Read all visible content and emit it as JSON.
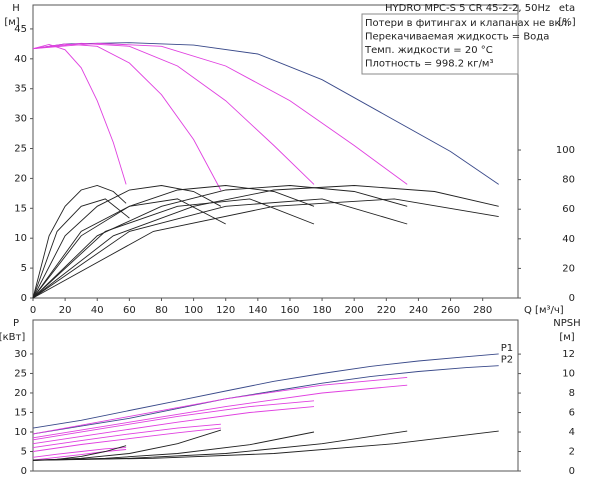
{
  "chart_data": [
    {
      "type": "line",
      "title": "HYDRO MPC-S 5 CR 45-2-2, 50Hz",
      "notes": [
        "Потери в фитингах и клапанах не вкл.",
        "Перекачиваемая жидкость = Вода",
        "Темп. жидкости = 20 °C",
        "Плотность = 998.2 кг/м³"
      ],
      "ylabel": [
        "H",
        "[м]"
      ],
      "y2label": [
        "eta",
        "[%]"
      ],
      "xlabel": "Q [м³/ч]",
      "xlim": [
        0,
        302
      ],
      "xticks": [
        0,
        20,
        40,
        60,
        80,
        100,
        120,
        140,
        160,
        180,
        200,
        220,
        240,
        260,
        280
      ],
      "ylim": [
        0,
        49
      ],
      "yticks": [
        0,
        5,
        10,
        15,
        20,
        25,
        30,
        35,
        40,
        45
      ],
      "y2lim": [
        0,
        198
      ],
      "y2ticks": [
        0,
        20,
        40,
        60,
        80,
        100
      ],
      "series": [
        {
          "color": "#3a4a8a",
          "x": [
            0,
            20,
            60,
            100,
            140,
            180,
            220,
            260,
            290
          ],
          "values": [
            41.7,
            42.5,
            42.7,
            42.3,
            40.8,
            36.5,
            30.5,
            24.5,
            19
          ]
        },
        {
          "color": "#e040e0",
          "x": [
            0,
            10,
            20,
            30,
            40,
            50,
            58
          ],
          "values": [
            41.7,
            42.4,
            41.5,
            38.5,
            33,
            26,
            19
          ]
        },
        {
          "color": "#e040e0",
          "x": [
            0,
            20,
            40,
            60,
            80,
            100,
            117
          ],
          "values": [
            41.7,
            42.5,
            42.1,
            39.3,
            34,
            26.5,
            18
          ]
        },
        {
          "color": "#e040e0",
          "x": [
            0,
            30,
            60,
            90,
            120,
            150,
            175
          ],
          "values": [
            41.7,
            42.6,
            42.1,
            38.8,
            33,
            25.5,
            19
          ]
        },
        {
          "color": "#e040e0",
          "x": [
            0,
            40,
            80,
            120,
            160,
            200,
            233
          ],
          "values": [
            41.7,
            42.6,
            42.1,
            38.8,
            33,
            25.5,
            19
          ]
        },
        {
          "color": "#222222",
          "axis": "y2",
          "x": [
            0,
            10,
            20,
            30,
            40,
            50,
            58
          ],
          "values": [
            0,
            42,
            62,
            73,
            76,
            72,
            64
          ]
        },
        {
          "color": "#222222",
          "axis": "y2",
          "x": [
            0,
            20,
            40,
            60,
            80,
            100,
            117
          ],
          "values": [
            0,
            42,
            62,
            73,
            76,
            72,
            62
          ]
        },
        {
          "color": "#222222",
          "axis": "y2",
          "x": [
            0,
            30,
            60,
            90,
            120,
            150,
            175
          ],
          "values": [
            0,
            42,
            62,
            73,
            76,
            72,
            62
          ]
        },
        {
          "color": "#222222",
          "axis": "y2",
          "x": [
            0,
            40,
            80,
            120,
            160,
            200,
            233
          ],
          "values": [
            0,
            42,
            62,
            73,
            76,
            72,
            62
          ]
        },
        {
          "color": "#222222",
          "axis": "y2",
          "x": [
            0,
            50,
            100,
            150,
            200,
            250,
            290
          ],
          "values": [
            0,
            42,
            62,
            73,
            76,
            72,
            62
          ]
        },
        {
          "color": "#222222",
          "axis": "y2",
          "x": [
            0,
            15,
            30,
            45,
            60
          ],
          "values": [
            0,
            45,
            62,
            67,
            54
          ]
        },
        {
          "color": "#222222",
          "axis": "y2",
          "x": [
            0,
            30,
            60,
            90,
            120
          ],
          "values": [
            0,
            45,
            62,
            67,
            50
          ]
        },
        {
          "color": "#222222",
          "axis": "y2",
          "x": [
            0,
            45,
            90,
            135,
            175
          ],
          "values": [
            0,
            45,
            62,
            67,
            50
          ]
        },
        {
          "color": "#222222",
          "axis": "y2",
          "x": [
            0,
            60,
            120,
            180,
            233
          ],
          "values": [
            0,
            45,
            62,
            67,
            50
          ]
        },
        {
          "color": "#222222",
          "axis": "y2",
          "x": [
            0,
            75,
            150,
            225,
            290
          ],
          "values": [
            0,
            45,
            62,
            67,
            55
          ]
        }
      ]
    },
    {
      "type": "line",
      "ylabel": [
        "P",
        "[кВт]"
      ],
      "y2label": [
        "NPSH",
        "[м]"
      ],
      "xlim": [
        0,
        302
      ],
      "ylim": [
        0,
        38.7
      ],
      "yticks": [
        0,
        5,
        10,
        15,
        20,
        25,
        30
      ],
      "y2lim": [
        0,
        15.5
      ],
      "y2ticks": [
        0,
        2,
        4,
        6,
        8,
        10,
        12
      ],
      "series": [
        {
          "name": "P1",
          "color": "#3a4a8a",
          "x": [
            0,
            30,
            60,
            90,
            120,
            150,
            180,
            210,
            240,
            270,
            290
          ],
          "values": [
            11,
            13,
            15.5,
            18,
            20.5,
            23,
            25,
            26.8,
            28.2,
            29.3,
            30
          ]
        },
        {
          "name": "P2",
          "color": "#3a4a8a",
          "x": [
            0,
            30,
            60,
            90,
            120,
            150,
            180,
            210,
            240,
            270,
            290
          ],
          "values": [
            9.5,
            11.5,
            13.5,
            16,
            18.5,
            20.5,
            22.5,
            24.2,
            25.5,
            26.5,
            27
          ]
        },
        {
          "color": "#e040e0",
          "x": [
            0,
            60,
            120,
            180,
            233
          ],
          "values": [
            9.5,
            14,
            18.5,
            22,
            24
          ]
        },
        {
          "color": "#e040e0",
          "x": [
            0,
            60,
            120,
            180,
            233
          ],
          "values": [
            8.5,
            12.5,
            16.5,
            20,
            22
          ]
        },
        {
          "color": "#e040e0",
          "x": [
            0,
            45,
            90,
            135,
            175
          ],
          "values": [
            8,
            11,
            14,
            16.5,
            18
          ]
        },
        {
          "color": "#e040e0",
          "x": [
            0,
            45,
            90,
            135,
            175
          ],
          "values": [
            7,
            9.8,
            12.5,
            15,
            16.5
          ]
        },
        {
          "color": "#e040e0",
          "x": [
            0,
            30,
            60,
            90,
            117
          ],
          "values": [
            6,
            7.8,
            9.5,
            11,
            12
          ]
        },
        {
          "color": "#e040e0",
          "x": [
            0,
            30,
            60,
            90,
            117
          ],
          "values": [
            5,
            6.8,
            8.3,
            9.8,
            11
          ]
        },
        {
          "color": "#e040e0",
          "x": [
            0,
            15,
            30,
            45,
            58
          ],
          "values": [
            3.5,
            4.3,
            5,
            5.7,
            6
          ]
        },
        {
          "color": "#e040e0",
          "x": [
            0,
            15,
            30,
            45,
            58
          ],
          "values": [
            2.8,
            3.5,
            4.2,
            5,
            5.5
          ]
        },
        {
          "color": "#222222",
          "axis": "y2",
          "x": [
            0,
            15,
            30,
            45,
            58
          ],
          "values": [
            1.1,
            1.2,
            1.5,
            2,
            2.6
          ]
        },
        {
          "color": "#222222",
          "axis": "y2",
          "x": [
            0,
            30,
            60,
            90,
            117
          ],
          "values": [
            1.1,
            1.3,
            1.8,
            2.8,
            4.2
          ]
        },
        {
          "color": "#222222",
          "axis": "y2",
          "x": [
            0,
            45,
            90,
            135,
            175
          ],
          "values": [
            1.1,
            1.3,
            1.8,
            2.7,
            4
          ]
        },
        {
          "color": "#222222",
          "axis": "y2",
          "x": [
            0,
            60,
            120,
            180,
            233
          ],
          "values": [
            1.1,
            1.3,
            1.8,
            2.8,
            4.1
          ]
        },
        {
          "color": "#222222",
          "axis": "y2",
          "x": [
            0,
            75,
            150,
            225,
            290
          ],
          "values": [
            1.1,
            1.3,
            1.8,
            2.8,
            4.1
          ]
        }
      ]
    }
  ]
}
